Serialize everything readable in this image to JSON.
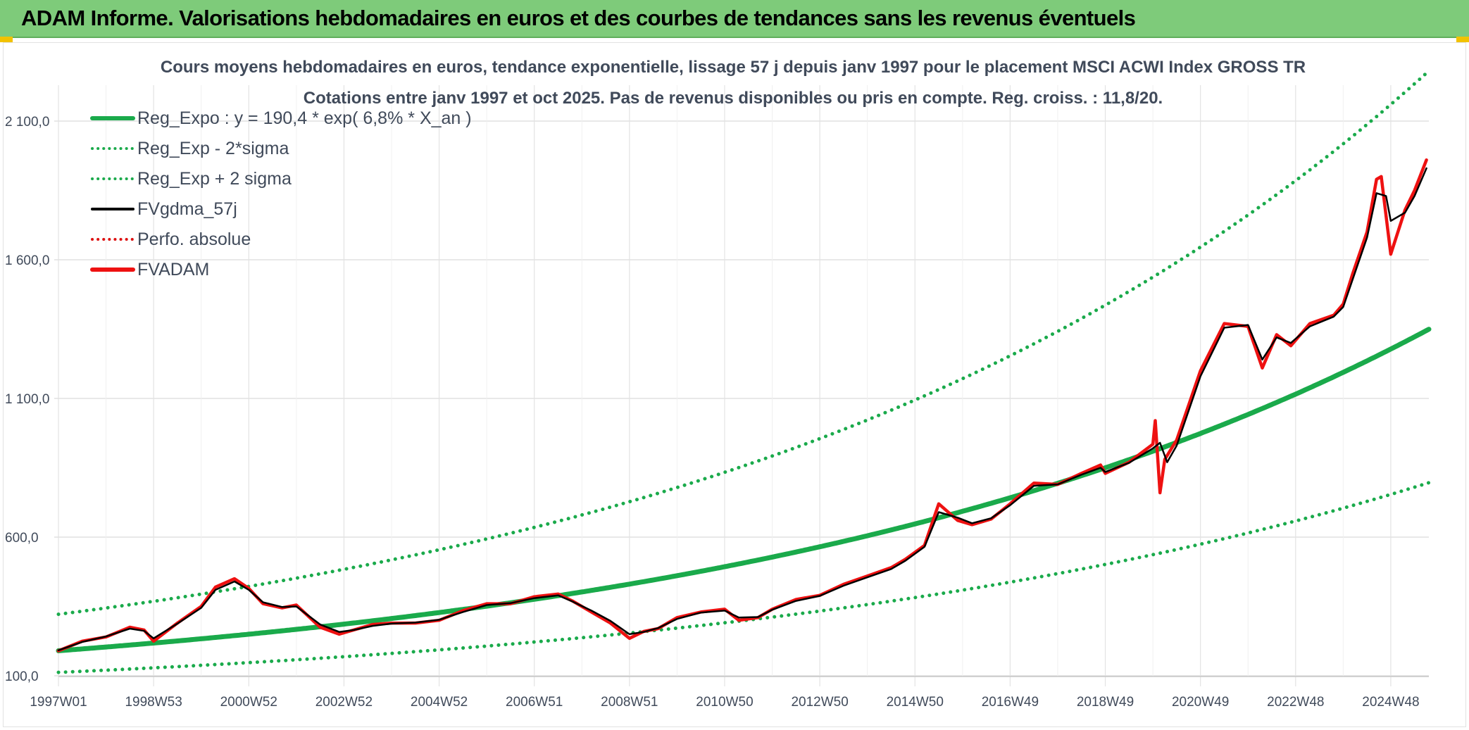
{
  "header": {
    "title": "ADAM Informe. Valorisations hebdomadaires en euros et des courbes de tendances sans les revenus éventuels"
  },
  "colors": {
    "banner": "#7ecb7a",
    "trend_green": "#1aaa4b",
    "fvadam_red": "#ee1111",
    "fvgdma_black": "#000000",
    "perfo_red": "#dd1111"
  },
  "chart_data": {
    "type": "line",
    "title": "Cours moyens hebdomadaires en euros, tendance exponentielle, lissage 57 j depuis janv 1997 pour le placement MSCI ACWI Index GROSS TR",
    "subtitle": "Cotations entre janv 1997 et oct 2025. Pas de revenus disponibles ou pris en compte. Reg. croiss. : 11,8/20.",
    "xlabel": "",
    "ylabel": "",
    "xlim": [
      1997.0,
      2025.8
    ],
    "ylim": [
      100,
      2300
    ],
    "grid": true,
    "legend_position": "top-left",
    "y_ticks": [
      {
        "value": 100,
        "label": "100,0"
      },
      {
        "value": 600,
        "label": "600,0"
      },
      {
        "value": 1100,
        "label": "1 100,0"
      },
      {
        "value": 1600,
        "label": "1 600,0"
      },
      {
        "value": 2100,
        "label": "2 100,0"
      }
    ],
    "x_ticks": [
      {
        "value": 1997.0,
        "label": "1997W01"
      },
      {
        "value": 1999.0,
        "label": "1998W53"
      },
      {
        "value": 2001.0,
        "label": "2000W52"
      },
      {
        "value": 2003.0,
        "label": "2002W52"
      },
      {
        "value": 2005.0,
        "label": "2004W52"
      },
      {
        "value": 2007.0,
        "label": "2006W51"
      },
      {
        "value": 2009.0,
        "label": "2008W51"
      },
      {
        "value": 2011.0,
        "label": "2010W50"
      },
      {
        "value": 2013.0,
        "label": "2012W50"
      },
      {
        "value": 2015.0,
        "label": "2014W50"
      },
      {
        "value": 2017.0,
        "label": "2016W49"
      },
      {
        "value": 2019.0,
        "label": "2018W49"
      },
      {
        "value": 2021.0,
        "label": "2020W49"
      },
      {
        "value": 2023.0,
        "label": "2022W48"
      },
      {
        "value": 2025.0,
        "label": "2024W48"
      }
    ],
    "regression": {
      "a": 190.4,
      "rate": 0.068,
      "start_year": 1997.0
    },
    "legend": [
      {
        "name": "Reg_Expo : y = 190,4 * exp( 6,8% *  X_an )",
        "style": "solid-thick",
        "color": "#1aaa4b"
      },
      {
        "name": "Reg_Exp - 2*sigma",
        "style": "dotted",
        "color": "#1aaa4b"
      },
      {
        "name": "Reg_Exp + 2 sigma",
        "style": "dotted",
        "color": "#1aaa4b"
      },
      {
        "name": "FVgdma_57j",
        "style": "solid",
        "color": "#000000"
      },
      {
        "name": "Perfo. absolue",
        "style": "dotted",
        "color": "#dd1111"
      },
      {
        "name": "FVADAM",
        "style": "solid-thick",
        "color": "#ee1111"
      }
    ],
    "series": [
      {
        "name": "Reg_Expo : y = 190,4 * exp( 6,8% *  X_an )",
        "function": "exp",
        "factor": 1.0
      },
      {
        "name": "Reg_Exp - 2*sigma",
        "function": "exp",
        "factor": 0.59
      },
      {
        "name": "Reg_Exp + 2 sigma",
        "function": "exp",
        "factor": 1.69
      },
      {
        "name": "FVADAM",
        "x": [
          1997.0,
          1997.5,
          1998.0,
          1998.5,
          1998.8,
          1999.0,
          1999.5,
          2000.0,
          2000.3,
          2000.7,
          2001.0,
          2001.3,
          2001.7,
          2002.0,
          2002.5,
          2002.9,
          2003.2,
          2003.6,
          2004.0,
          2004.5,
          2005.0,
          2005.5,
          2006.0,
          2006.5,
          2007.0,
          2007.5,
          2007.8,
          2008.2,
          2008.6,
          2009.0,
          2009.3,
          2009.6,
          2010.0,
          2010.5,
          2011.0,
          2011.3,
          2011.7,
          2012.0,
          2012.5,
          2013.0,
          2013.5,
          2014.0,
          2014.5,
          2014.8,
          2015.2,
          2015.5,
          2015.9,
          2016.2,
          2016.6,
          2017.0,
          2017.5,
          2018.0,
          2018.5,
          2018.9,
          2019.0,
          2019.5,
          2020.0,
          2020.05,
          2020.15,
          2020.25,
          2020.5,
          2021.0,
          2021.5,
          2022.0,
          2022.3,
          2022.6,
          2022.9,
          2023.3,
          2023.8,
          2024.0,
          2024.2,
          2024.5,
          2024.7,
          2024.8,
          2025.0,
          2025.3,
          2025.5,
          2025.75
        ],
        "values": [
          190,
          225,
          240,
          275,
          265,
          225,
          290,
          350,
          420,
          450,
          415,
          360,
          345,
          355,
          275,
          250,
          265,
          285,
          290,
          290,
          300,
          335,
          360,
          360,
          385,
          395,
          370,
          330,
          290,
          235,
          260,
          270,
          310,
          330,
          340,
          300,
          310,
          340,
          375,
          390,
          430,
          460,
          490,
          520,
          570,
          720,
          660,
          645,
          665,
          720,
          795,
          790,
          830,
          860,
          830,
          870,
          935,
          1020,
          760,
          880,
          950,
          1200,
          1370,
          1360,
          1210,
          1330,
          1290,
          1370,
          1400,
          1440,
          1550,
          1700,
          1890,
          1900,
          1620,
          1780,
          1850,
          1960
        ]
      },
      {
        "name": "FVgdma_57j",
        "x": [
          1997.0,
          1997.5,
          1998.0,
          1998.5,
          1998.8,
          1999.0,
          1999.5,
          2000.0,
          2000.3,
          2000.7,
          2001.0,
          2001.3,
          2001.7,
          2002.0,
          2002.5,
          2002.9,
          2003.2,
          2003.6,
          2004.0,
          2004.5,
          2005.0,
          2005.5,
          2006.0,
          2006.5,
          2007.0,
          2007.5,
          2007.8,
          2008.2,
          2008.6,
          2009.0,
          2009.3,
          2009.6,
          2010.0,
          2010.5,
          2011.0,
          2011.3,
          2011.7,
          2012.0,
          2012.5,
          2013.0,
          2013.5,
          2014.0,
          2014.5,
          2014.8,
          2015.2,
          2015.5,
          2015.9,
          2016.2,
          2016.6,
          2017.0,
          2017.5,
          2018.0,
          2018.5,
          2018.9,
          2019.0,
          2019.5,
          2020.0,
          2020.15,
          2020.3,
          2020.5,
          2021.0,
          2021.5,
          2022.0,
          2022.3,
          2022.6,
          2022.9,
          2023.3,
          2023.8,
          2024.0,
          2024.2,
          2024.5,
          2024.7,
          2024.9,
          2025.0,
          2025.3,
          2025.5,
          2025.75
        ],
        "values": [
          192,
          222,
          242,
          270,
          262,
          235,
          288,
          345,
          410,
          440,
          410,
          365,
          348,
          350,
          285,
          258,
          265,
          280,
          288,
          292,
          302,
          330,
          355,
          362,
          380,
          390,
          368,
          335,
          298,
          250,
          258,
          272,
          305,
          328,
          335,
          310,
          312,
          338,
          370,
          388,
          425,
          455,
          485,
          515,
          565,
          690,
          670,
          650,
          668,
          715,
          785,
          790,
          825,
          850,
          835,
          868,
          920,
          940,
          870,
          930,
          1180,
          1355,
          1365,
          1240,
          1320,
          1300,
          1360,
          1395,
          1430,
          1530,
          1680,
          1840,
          1830,
          1740,
          1770,
          1830,
          1930
        ]
      }
    ]
  }
}
